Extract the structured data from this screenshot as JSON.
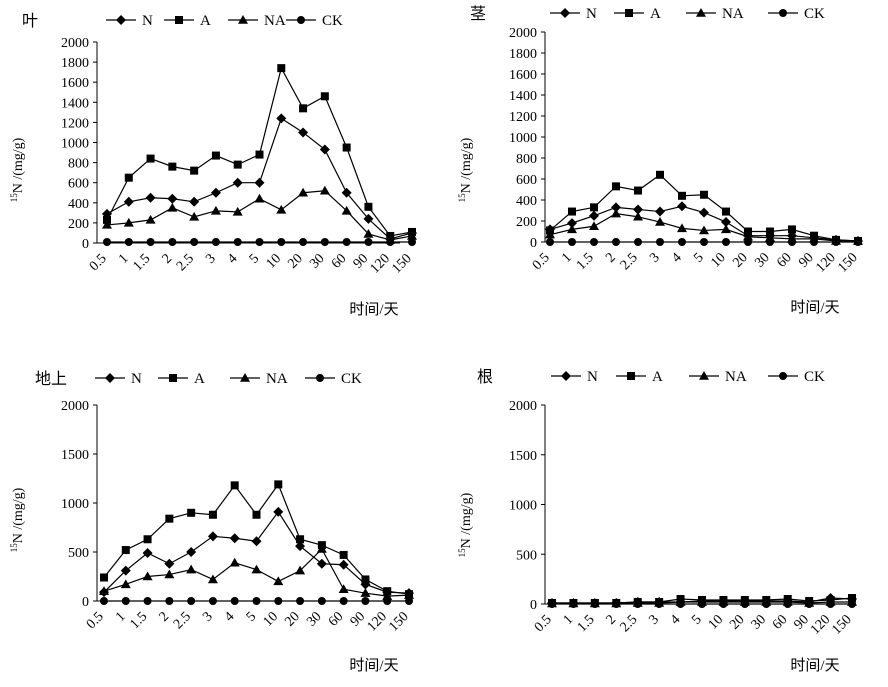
{
  "chart_data": [
    {
      "type": "line",
      "panel_label": "叶",
      "ylabel_sup": "15",
      "ylabel": "N /(mg/g)",
      "xlabel": "时间/天",
      "categories": [
        "0.5",
        "1",
        "1.5",
        "2",
        "2.5",
        "3",
        "4",
        "5",
        "10",
        "20",
        "30",
        "60",
        "90",
        "120",
        "150"
      ],
      "ylim": [
        0,
        2000
      ],
      "yticks": [
        0,
        200,
        400,
        600,
        800,
        1000,
        1200,
        1400,
        1600,
        1800,
        2000
      ],
      "legend_position": "top",
      "series": [
        {
          "name": "N",
          "marker": "diamond",
          "values": [
            290,
            410,
            450,
            440,
            410,
            500,
            600,
            600,
            1240,
            1100,
            930,
            500,
            240,
            40,
            100
          ]
        },
        {
          "name": "A",
          "marker": "square",
          "values": [
            230,
            650,
            840,
            760,
            720,
            870,
            780,
            880,
            1740,
            1340,
            1460,
            950,
            360,
            70,
            110
          ]
        },
        {
          "name": "NA",
          "marker": "triangle",
          "values": [
            180,
            200,
            230,
            350,
            260,
            320,
            310,
            440,
            330,
            500,
            520,
            320,
            90,
            30,
            70
          ]
        },
        {
          "name": "CK",
          "marker": "circle",
          "values": [
            10,
            10,
            10,
            10,
            10,
            10,
            10,
            10,
            10,
            10,
            10,
            10,
            10,
            10,
            10
          ]
        }
      ]
    },
    {
      "type": "line",
      "panel_label": "茎",
      "ylabel_sup": "15",
      "ylabel": "N /(mg/g)",
      "xlabel": "时间/天",
      "categories": [
        "0.5",
        "1",
        "1.5",
        "2",
        "2.5",
        "3",
        "4",
        "5",
        "10",
        "20",
        "30",
        "60",
        "90",
        "120",
        "150"
      ],
      "ylim": [
        0,
        2000
      ],
      "yticks": [
        0,
        200,
        400,
        600,
        800,
        1000,
        1200,
        1400,
        1600,
        1800,
        2000
      ],
      "legend_position": "top",
      "series": [
        {
          "name": "N",
          "marker": "diamond",
          "values": [
            120,
            180,
            250,
            330,
            310,
            290,
            340,
            280,
            190,
            60,
            60,
            60,
            40,
            20,
            10
          ]
        },
        {
          "name": "A",
          "marker": "square",
          "values": [
            110,
            290,
            330,
            530,
            490,
            640,
            440,
            450,
            290,
            100,
            100,
            120,
            60,
            20,
            10
          ]
        },
        {
          "name": "NA",
          "marker": "triangle",
          "values": [
            70,
            120,
            150,
            270,
            240,
            190,
            130,
            110,
            120,
            50,
            40,
            30,
            30,
            10,
            10
          ]
        },
        {
          "name": "CK",
          "marker": "circle",
          "values": [
            0,
            0,
            0,
            0,
            0,
            0,
            0,
            0,
            0,
            0,
            0,
            0,
            0,
            0,
            0
          ]
        }
      ]
    },
    {
      "type": "line",
      "panel_label": "地上",
      "ylabel_sup": "15",
      "ylabel": "N /(mg/g)",
      "xlabel": "时间/天",
      "categories": [
        "0.5",
        "1",
        "1.5",
        "2",
        "2.5",
        "3",
        "4",
        "5",
        "10",
        "20",
        "30",
        "60",
        "90",
        "120",
        "150"
      ],
      "ylim": [
        0,
        2000
      ],
      "yticks": [
        0,
        500,
        1000,
        1500,
        2000
      ],
      "legend_position": "top",
      "series": [
        {
          "name": "N",
          "marker": "diamond",
          "values": [
            90,
            310,
            490,
            380,
            500,
            660,
            640,
            610,
            910,
            560,
            380,
            370,
            170,
            90,
            80
          ]
        },
        {
          "name": "A",
          "marker": "square",
          "values": [
            240,
            520,
            630,
            840,
            900,
            880,
            1180,
            880,
            1190,
            630,
            570,
            470,
            220,
            100,
            70
          ]
        },
        {
          "name": "NA",
          "marker": "triangle",
          "values": [
            100,
            170,
            250,
            270,
            320,
            220,
            390,
            320,
            200,
            310,
            530,
            120,
            80,
            50,
            60
          ]
        },
        {
          "name": "CK",
          "marker": "circle",
          "values": [
            0,
            0,
            0,
            0,
            0,
            0,
            0,
            0,
            0,
            0,
            0,
            0,
            0,
            0,
            0
          ]
        }
      ]
    },
    {
      "type": "line",
      "panel_label": "根",
      "ylabel_sup": "15",
      "ylabel": "N /(mg/g)",
      "xlabel": "时间/天",
      "categories": [
        "0.5",
        "1",
        "1.5",
        "2",
        "2.5",
        "3",
        "4",
        "5",
        "10",
        "20",
        "30",
        "60",
        "90",
        "120",
        "150"
      ],
      "ylim": [
        0,
        2000
      ],
      "yticks": [
        0,
        500,
        1000,
        1500,
        2000
      ],
      "legend_position": "top",
      "series": [
        {
          "name": "N",
          "marker": "diamond",
          "values": [
            10,
            10,
            10,
            10,
            20,
            20,
            20,
            30,
            30,
            30,
            30,
            30,
            20,
            60,
            50
          ]
        },
        {
          "name": "A",
          "marker": "square",
          "values": [
            10,
            10,
            10,
            10,
            20,
            20,
            50,
            40,
            40,
            40,
            40,
            50,
            30,
            40,
            60
          ]
        },
        {
          "name": "NA",
          "marker": "triangle",
          "values": [
            5,
            5,
            5,
            5,
            10,
            10,
            20,
            20,
            20,
            20,
            20,
            20,
            10,
            20,
            20
          ]
        },
        {
          "name": "CK",
          "marker": "circle",
          "values": [
            0,
            0,
            0,
            0,
            0,
            0,
            0,
            0,
            0,
            0,
            0,
            0,
            0,
            0,
            0
          ]
        }
      ]
    }
  ]
}
